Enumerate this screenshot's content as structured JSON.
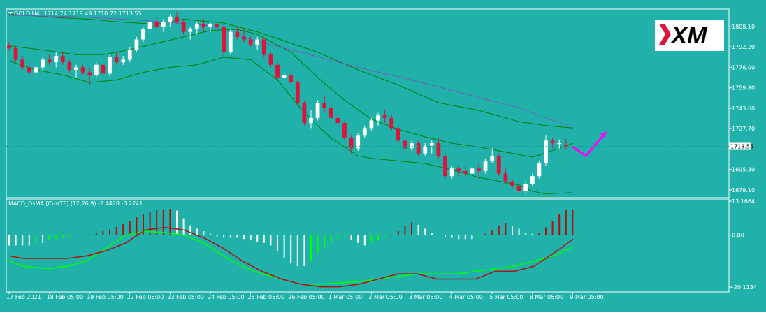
{
  "colors": {
    "background": "#20b2aa",
    "frame": "#ffffff",
    "bull_candle": "#ffffff",
    "bear_candle": "#dc143c",
    "bollinger": "#008000",
    "ma_slow": "#7060c0",
    "macd_line": "#b01010",
    "signal_line": "#00ff00",
    "hist_pos_rising": "#b01010",
    "hist_pos_falling": "#ffffff",
    "hist_neg_falling": "#ffffff",
    "hist_neg_rising": "#00ff00",
    "arrow": "#ff00ff"
  },
  "logo": {
    "text": "XM",
    "icon": "xm-logo"
  },
  "chart_data": [
    {
      "type": "candlestick",
      "title": "GOLD,H4",
      "ohlc_label": "1714.74 1719.49 1710.72 1713.55",
      "current_price_label": "1713.55",
      "current_price": 1713.55,
      "y_ticks": [
        "1808.10",
        "1792.20",
        "1776.00",
        "1759.80",
        "1743.60",
        "1727.70",
        "1695.30",
        "1679.10"
      ],
      "y_tick_values": [
        1808.1,
        1792.2,
        1776.0,
        1759.8,
        1743.6,
        1727.7,
        1695.3,
        1679.1
      ],
      "ylim": [
        1673,
        1822
      ],
      "bars": 84,
      "bar_width_fraction": 0.6,
      "candles": [
        [
          1793,
          1796,
          1789,
          1791
        ],
        [
          1791,
          1793,
          1780,
          1782
        ],
        [
          1782,
          1785,
          1774,
          1776
        ],
        [
          1776,
          1780,
          1770,
          1772
        ],
        [
          1772,
          1778,
          1768,
          1776
        ],
        [
          1776,
          1784,
          1774,
          1782
        ],
        [
          1782,
          1786,
          1778,
          1780
        ],
        [
          1780,
          1788,
          1776,
          1785
        ],
        [
          1785,
          1788,
          1778,
          1780
        ],
        [
          1780,
          1782,
          1772,
          1774
        ],
        [
          1774,
          1778,
          1768,
          1776
        ],
        [
          1776,
          1778,
          1770,
          1772
        ],
        [
          1772,
          1776,
          1762,
          1770
        ],
        [
          1770,
          1780,
          1768,
          1778
        ],
        [
          1778,
          1780,
          1768,
          1771
        ],
        [
          1771,
          1786,
          1769,
          1784
        ],
        [
          1784,
          1788,
          1778,
          1780
        ],
        [
          1780,
          1785,
          1778,
          1782
        ],
        [
          1782,
          1792,
          1780,
          1790
        ],
        [
          1790,
          1800,
          1788,
          1798
        ],
        [
          1798,
          1808,
          1796,
          1806
        ],
        [
          1806,
          1814,
          1802,
          1812
        ],
        [
          1812,
          1816,
          1806,
          1808
        ],
        [
          1808,
          1814,
          1804,
          1812
        ],
        [
          1812,
          1818,
          1808,
          1816
        ],
        [
          1816,
          1820,
          1810,
          1812
        ],
        [
          1812,
          1814,
          1802,
          1804
        ],
        [
          1804,
          1808,
          1798,
          1806
        ],
        [
          1806,
          1812,
          1802,
          1810
        ],
        [
          1810,
          1814,
          1804,
          1808
        ],
        [
          1808,
          1812,
          1804,
          1810
        ],
        [
          1810,
          1812,
          1806,
          1808
        ],
        [
          1808,
          1810,
          1784,
          1788
        ],
        [
          1788,
          1806,
          1786,
          1804
        ],
        [
          1804,
          1808,
          1798,
          1800
        ],
        [
          1800,
          1806,
          1795,
          1798
        ],
        [
          1798,
          1800,
          1792,
          1794
        ],
        [
          1794,
          1800,
          1790,
          1798
        ],
        [
          1798,
          1800,
          1784,
          1786
        ],
        [
          1786,
          1788,
          1776,
          1778
        ],
        [
          1778,
          1780,
          1766,
          1768
        ],
        [
          1768,
          1772,
          1764,
          1770
        ],
        [
          1770,
          1774,
          1762,
          1764
        ],
        [
          1764,
          1766,
          1746,
          1748
        ],
        [
          1748,
          1750,
          1730,
          1732
        ],
        [
          1732,
          1742,
          1728,
          1736
        ],
        [
          1736,
          1750,
          1734,
          1748
        ],
        [
          1748,
          1754,
          1740,
          1744
        ],
        [
          1744,
          1746,
          1734,
          1736
        ],
        [
          1736,
          1742,
          1730,
          1732
        ],
        [
          1732,
          1734,
          1718,
          1720
        ],
        [
          1720,
          1722,
          1708,
          1712
        ],
        [
          1712,
          1724,
          1710,
          1722
        ],
        [
          1722,
          1730,
          1720,
          1728
        ],
        [
          1728,
          1736,
          1726,
          1734
        ],
        [
          1734,
          1740,
          1730,
          1738
        ],
        [
          1738,
          1742,
          1732,
          1736
        ],
        [
          1736,
          1738,
          1726,
          1728
        ],
        [
          1728,
          1730,
          1716,
          1718
        ],
        [
          1718,
          1720,
          1710,
          1712
        ],
        [
          1712,
          1718,
          1710,
          1716
        ],
        [
          1716,
          1718,
          1706,
          1708
        ],
        [
          1708,
          1716,
          1706,
          1714
        ],
        [
          1714,
          1718,
          1708,
          1716
        ],
        [
          1716,
          1720,
          1704,
          1706
        ],
        [
          1706,
          1708,
          1688,
          1690
        ],
        [
          1690,
          1698,
          1688,
          1696
        ],
        [
          1696,
          1698,
          1690,
          1694
        ],
        [
          1694,
          1698,
          1690,
          1692
        ],
        [
          1692,
          1698,
          1690,
          1696
        ],
        [
          1696,
          1700,
          1688,
          1694
        ],
        [
          1694,
          1704,
          1692,
          1702
        ],
        [
          1702,
          1712,
          1700,
          1706
        ],
        [
          1706,
          1708,
          1690,
          1692
        ],
        [
          1692,
          1696,
          1684,
          1686
        ],
        [
          1686,
          1688,
          1680,
          1682
        ],
        [
          1682,
          1686,
          1676,
          1678
        ],
        [
          1678,
          1686,
          1676,
          1684
        ],
        [
          1684,
          1692,
          1682,
          1690
        ],
        [
          1690,
          1702,
          1688,
          1700
        ],
        [
          1700,
          1722,
          1698,
          1718
        ],
        [
          1718,
          1720,
          1712,
          1716
        ],
        [
          1716,
          1719,
          1711,
          1716
        ],
        [
          1714.74,
          1719.49,
          1710.72,
          1713.55
        ]
      ],
      "bollinger_upper": [
        [
          0,
          1818
        ],
        [
          8,
          1815
        ],
        [
          12,
          1814
        ],
        [
          16,
          1812
        ],
        [
          22,
          1810
        ],
        [
          26,
          1814
        ],
        [
          32,
          1811
        ],
        [
          37,
          1804
        ],
        [
          42,
          1795
        ],
        [
          46,
          1788
        ],
        [
          52,
          1774
        ],
        [
          58,
          1762
        ],
        [
          64,
          1748
        ],
        [
          70,
          1742
        ],
        [
          76,
          1733
        ],
        [
          80,
          1730
        ],
        [
          82,
          1729
        ],
        [
          84,
          1728
        ]
      ],
      "bollinger_middle": [
        [
          0,
          1793
        ],
        [
          6,
          1789
        ],
        [
          10,
          1786
        ],
        [
          14,
          1786
        ],
        [
          18,
          1790
        ],
        [
          22,
          1795
        ],
        [
          26,
          1800
        ],
        [
          30,
          1805
        ],
        [
          34,
          1806
        ],
        [
          37,
          1802
        ],
        [
          42,
          1788
        ],
        [
          46,
          1768
        ],
        [
          50,
          1750
        ],
        [
          54,
          1735
        ],
        [
          58,
          1727
        ],
        [
          62,
          1721
        ],
        [
          66,
          1716
        ],
        [
          70,
          1713
        ],
        [
          74,
          1709
        ],
        [
          78,
          1705
        ],
        [
          82,
          1712
        ],
        [
          84,
          1716
        ]
      ],
      "bollinger_lower": [
        [
          0,
          1781
        ],
        [
          4,
          1774
        ],
        [
          8,
          1770
        ],
        [
          12,
          1764
        ],
        [
          16,
          1766
        ],
        [
          20,
          1772
        ],
        [
          24,
          1776
        ],
        [
          28,
          1778
        ],
        [
          32,
          1784
        ],
        [
          36,
          1782
        ],
        [
          40,
          1766
        ],
        [
          44,
          1740
        ],
        [
          48,
          1720
        ],
        [
          52,
          1706
        ],
        [
          54,
          1704
        ],
        [
          58,
          1702
        ],
        [
          62,
          1700
        ],
        [
          66,
          1695
        ],
        [
          70,
          1689
        ],
        [
          74,
          1685
        ],
        [
          76,
          1683
        ],
        [
          78,
          1678
        ],
        [
          80,
          1676
        ],
        [
          84,
          1677
        ]
      ],
      "ma_slow": [
        [
          0,
          1817
        ],
        [
          10,
          1816
        ],
        [
          20,
          1813
        ],
        [
          30,
          1809
        ],
        [
          36,
          1798
        ],
        [
          44,
          1787
        ],
        [
          52,
          1776
        ],
        [
          60,
          1766
        ],
        [
          68,
          1755
        ],
        [
          76,
          1744
        ],
        [
          80,
          1736
        ],
        [
          84,
          1729
        ]
      ],
      "arrow": {
        "from": [
          84,
          1713
        ],
        "mid": [
          86,
          1706
        ],
        "to": [
          89,
          1725
        ]
      }
    },
    {
      "type": "histogram_with_lines",
      "title": "MACD_OsMA [CurrTF] (12,26,9) -2.4428 -8.2741",
      "y_ticks": [
        "13.1664",
        "0.00",
        "-20.1134"
      ],
      "y_tick_values": [
        13.1664,
        0,
        -20.1134
      ],
      "ylim": [
        -22,
        14
      ],
      "x_ticks": [
        "17 Feb 2021",
        "18 Feb 05:00",
        "19 Feb 05:00",
        "22 Feb 05:00",
        "23 Feb 05:00",
        "24 Feb 05:00",
        "25 Feb 05:00",
        "26 Feb 05:00",
        "1 Mar 05:00",
        "2 Mar 05:00",
        "3 Mar 05:00",
        "4 Mar 05:00",
        "5 Mar 05:00",
        "8 Mar 05:00",
        "9 Mar 05:00"
      ],
      "x_tick_bars": [
        0,
        6,
        12,
        18,
        24,
        30,
        36,
        42,
        48,
        54,
        60,
        66,
        72,
        78,
        84
      ],
      "histogram": [
        -4,
        -4,
        -4,
        -4,
        -3,
        -3,
        -2,
        -1.5,
        -1,
        -0.5,
        0,
        0,
        0.3,
        0.8,
        1.5,
        2.2,
        3.2,
        4.2,
        5.5,
        7,
        8.2,
        9.2,
        9.8,
        10,
        10.2,
        9.5,
        6.5,
        3.8,
        2.5,
        1.5,
        0.5,
        -0.5,
        -1,
        -1,
        -1,
        -1.5,
        -2,
        -2.5,
        -3,
        -4,
        -6,
        -9,
        -11,
        -12,
        -12,
        -10,
        -7,
        -5,
        -3,
        -1.5,
        -1,
        -2,
        -3,
        -4,
        -3,
        -2,
        -0.5,
        0.3,
        1.5,
        3.5,
        5,
        4,
        2.5,
        1,
        0,
        -0.5,
        -1,
        -1.5,
        -1.5,
        -1.5,
        -1,
        0.5,
        2,
        3.5,
        4.8,
        3.5,
        2.5,
        1,
        0.5,
        1,
        3,
        5.5,
        8.2,
        9.8,
        9.8
      ],
      "macd_line": [
        [
          0,
          -8
        ],
        [
          3,
          -9
        ],
        [
          8,
          -9
        ],
        [
          12,
          -9
        ],
        [
          16,
          -8
        ],
        [
          20,
          -6
        ],
        [
          24,
          -3
        ],
        [
          28,
          2
        ],
        [
          32,
          3
        ],
        [
          36,
          2
        ],
        [
          40,
          -1
        ],
        [
          44,
          -5
        ],
        [
          48,
          -10
        ],
        [
          52,
          -14
        ],
        [
          56,
          -17
        ],
        [
          60,
          -19
        ],
        [
          64,
          -20
        ],
        [
          68,
          -20
        ],
        [
          72,
          -19
        ],
        [
          76,
          -17
        ],
        [
          80,
          -15
        ],
        [
          84,
          -15
        ],
        [
          88,
          -17
        ],
        [
          92,
          -17
        ],
        [
          96,
          -17
        ],
        [
          100,
          -14
        ],
        [
          104,
          -14
        ],
        [
          108,
          -12
        ],
        [
          112,
          -7
        ],
        [
          116,
          -1.5
        ]
      ],
      "signal_line": [
        [
          0,
          -10
        ],
        [
          3,
          -12
        ],
        [
          8,
          -13
        ],
        [
          12,
          -12
        ],
        [
          16,
          -10
        ],
        [
          20,
          -5
        ],
        [
          24,
          0
        ],
        [
          28,
          1.5
        ],
        [
          32,
          1
        ],
        [
          36,
          0
        ],
        [
          40,
          -3
        ],
        [
          44,
          -8
        ],
        [
          48,
          -12
        ],
        [
          52,
          -15
        ],
        [
          56,
          -17
        ],
        [
          60,
          -19
        ],
        [
          64,
          -19
        ],
        [
          68,
          -18.5
        ],
        [
          72,
          -18
        ],
        [
          76,
          -17
        ],
        [
          80,
          -16
        ],
        [
          84,
          -15
        ],
        [
          88,
          -15
        ],
        [
          92,
          -15
        ],
        [
          96,
          -14
        ],
        [
          100,
          -13
        ],
        [
          104,
          -12
        ],
        [
          108,
          -10
        ],
        [
          112,
          -8
        ],
        [
          116,
          -4.5
        ]
      ]
    }
  ]
}
